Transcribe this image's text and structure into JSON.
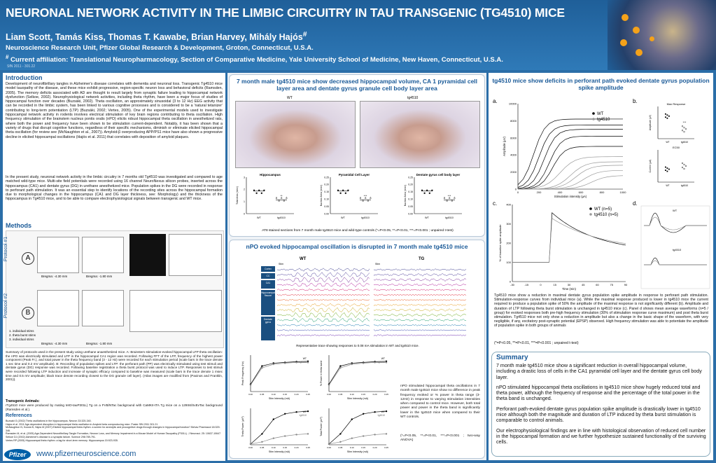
{
  "header": {
    "title": "NEURONAL NETWORK ACTIVITY IN THE LIMBIC CIRCUITRY IN TAU TRANSGENIC (TG4510) MICE",
    "authors": "Liam Scott, Tamás Kiss, Thomas T. Kawabe, Brian Harvey, Mihály Hajós",
    "authors_mark": "#",
    "affiliation": "Neuroscience Research Unit, Pfizer Global Research & Development, Groton, Connecticut, U.S.A.",
    "current_mark": "#",
    "current_affiliation": " Current affiliation: Translational Neuropharmacology, Section of Comparative Medicine, Yale University School of Medicine, New Haven, Connecticut, U.S.A.",
    "sfn": "SfN 2011 - 301.22"
  },
  "intro": {
    "heading": "Introduction",
    "p1": "Development of neurofibrillary tangles in Alzheimer's disease correlates with dementia and neuronal loss. Transgenic Tg4510 mice model tauopathy of the disease, and these mice exhibit progressive, region-specific neuron loss and behavioral deficits (Ramsden, 2005). The memory deficits associated with AD are thought to result largely from synaptic failure leading to hippocampal network dysfunction (Selkoe, 2002). Neurophysiological network activities, including theta rhythm, have been a major focus of studies of hippocampal function over decades (Buzsáki, 2002). Theta oscillation, an approximately sinusoidal (3 to 12 Hz) EEG activity that can be recorded in the limbic system, has been linked to various cognitive processes and is considered to be a 'natural tetanizer' contributing to long-term potentiation (LTP) (Buzsáki, 2002; Vertes, 2005). One of the experimental models used to investigate hippocampal network activity in rodents involves electrical stimulation of key brain regions contributing to theta oscillation. High frequency stimulation of the brainstem nucleus pontis oralis (nPO) elicits robust hippocampal theta oscillation in anesthetized rats, where both the power and frequency have been shown to be stimulation current-dependent. Notably, it has been shown that a variety of drugs that disrupt cognitive functions, regardless of their specific mechanisms, diminish or eliminate elicited hippocampal theta oscillation (for review see (McNaughton et al., 2007)). Amyloid-β overproducing APP/PS1 mice have also shown a progressive decline in elicited hippocampal oscillations (Hajós et al. 2011) that correlates with deposition of amyloid plaques.",
    "p2": "In the present study, neuronal network activity in the limbic circuitry in 7 months old Tg4510 was investigated and compared to age matched wild-type mice. Multi-site field potentials were recorded using 16 channel NeuroNexus silicon probes, inserted across the hippocampus (CA1) and dentate gyrus (DG) in urethane anesthetized mice. Population spikes in the DG were recorded in response to perforant path stimulation. It was an essential step to identify locations of the recording sites across the hippocampal formation due to morphological changes in the hippocampus (CA1 and DG layer thickness, see: Morphology) and the thickness of the hippocampus in Tg4510 mice, and to be able to compare electrophysiological signals between transgenic and WT mice."
  },
  "methods": {
    "heading": "Methods",
    "protocol1": "Protocol #1",
    "protocol2": "Protocol #2",
    "bregma1": "Bregma: -4.30 mm",
    "bregma2": "Bregma: -1.80 mm",
    "bregma3": "Bregma: -4.30 mm",
    "bregma4": "Bregma: -1.80 mm",
    "marker_a": "A",
    "marker_b": "B",
    "legend1": "1. individual stims",
    "legend2": "2. theta burst stims",
    "legend3": "3. individual stims",
    "summary": "Summary of protocols used in the present study using urethane anaesthetized mice. A: Brainstem stimulation-evoked hippocampal LFP theta oscillation: the nPO was electrically stimulated and LFP in the hippocampal CA1 region was recorded. Following FFT of the LFP, frequency of the highest power component (Peak Fr.), and total power in the theta frequency band (3 - 12 Hz) were recorded for each stimulation period (scale bars in the trace denote 1 sec time and 0.2 mV amplitude). B: Recording of population spikes and LTP: the perforant path (PP) was electrically stimulated using test stimuli and dentate gyrus (DG) response was recorded. Following baseline registration a theta burst protocol was used to induce LTP. Responses to test stimuli were recorded following LTP induction and increase of synaptic efficacy compared to baseline was measured (scale bars in the trace denote 1 msec time and 0.5 mV amplitude; black trace denote recording closest to the DG granule cell layer). (Atlas images are modified from (Paxinos and Franklin, 2001)).",
    "transgenic_h": "Transgenic Animals:",
    "transgenic": "rTg4510 mice were produced by mating tetO-tauP301L) Tg on a FVB/NTac background with CaMKII-tTA Tg mice on a 129S6/SvEvTac background (Ramsden et al.)."
  },
  "references": {
    "heading": "References",
    "items": [
      "Buzsaki G (2002) Theta oscillations in the hippocampus. Neuron 33:325-340.",
      "Hajos et al. 2011 Age-dependent disruption in hippocampal theta oscillation in Amyloid beta overproducing mice. Poster SfN 2011 301.21",
      "McNaughton N, Kocsis B, Hajós M (2007) Elicited hippocampal theta rhythm: a screen for anxiolytic and procognitive drugs through changes in hippocampal function? Behav Pharmacol 18:329-346.",
      "Ramsden M, et al. (2005) Age-Dependent Neurofibrillary Tangle Formation, Neuron Loss, and Memory Impairment in a Mouse Model of Human Tauopathy (P301L). J Neurosci. 25: 10637-10647",
      "Selkoe DJ (2002) Alzheimer's disease is a synaptic failure. Science 298:789-791.",
      "Vertes RP (2005) Hippocampal theta rhythm: a tag for short-term memory. Hippocampus 15:923-935."
    ]
  },
  "footer": {
    "logo": "Pfizer",
    "url": "www.pfizerneuroscience.com"
  },
  "morphology": {
    "title": "7 month male tg4510 mice show decreased hippocampal volume, CA 1 pyramidal cell layer area and dentate gyrus granule cell body layer area",
    "wt_label": "WT",
    "tg_label": "tg4510",
    "caption": "AT8 stained sections from 7 month male tg4510 mice and wild-type controls (*=P<0.05, **=P<0.01, ***=P<0.001 ; unpaired t-test)",
    "charts": [
      {
        "title": "Hippocampus",
        "ylabel": "Total Area (mm²)",
        "yticks": [
          "0",
          "1",
          "2",
          "3"
        ],
        "groups": [
          "WT",
          "tg4510"
        ],
        "sig": "**"
      },
      {
        "title": "Pyramidal Cell Layer",
        "ylabel": "Nuclear Area (mm²)",
        "yticks": [
          "0.00",
          "0.05",
          "0.10",
          "0.15",
          "0.20",
          "0.25"
        ],
        "groups": [
          "WT",
          "tg4510"
        ],
        "sig": "***"
      },
      {
        "title": "Dentate gyrus cell body layer",
        "ylabel": "Nuclear Area (mm²)",
        "yticks": [
          "0.00",
          "0.05",
          "0.10",
          "0.15",
          "0.20",
          "0.25"
        ],
        "groups": [
          "WT",
          "tg4510"
        ],
        "sig": "***"
      }
    ]
  },
  "npo": {
    "title": "nPO evoked hippocampal oscillation is disrupted in 7 month male tg4510 mice",
    "wt": "WT",
    "tg": "TG",
    "stim": "Stim",
    "layers": [
      "Cortex",
      "CC",
      "CA1",
      "Hippocampal fissure",
      "Dentate gyrus"
    ],
    "caption": "Representative trace showing responses to 0.08 mA stimulation in WT and tg4510 mice.",
    "charts": [
      {
        "ylabel": "Peak Frequency (Hz)",
        "xlabel": "Stim Intensity (mA)"
      },
      {
        "ylabel": "% Power in theta band",
        "xlabel": "Stim Intensity (mA)"
      },
      {
        "ylabel": "Theta Power (µV²)",
        "xlabel": "Stim Intensity (mA)"
      },
      {
        "ylabel": "Total Power (µV²)",
        "xlabel": "Stim Intensity (mA)"
      }
    ],
    "xticks": [
      "0.00",
      "0.05",
      "0.10",
      "0.15",
      "0.20",
      "0.25"
    ],
    "legend_wt": "WT",
    "legend_tg": "tg4510",
    "text": "nPO stimulated hippocampal theta oscillations in 7 month male tg4510 mice show no difference in peak frequency evoked or % power in theta range (3-12Hz) in response to varying stimulation intensities when compared to control mice. However, both total power and power in the theta band is significantly lower in the tg4510 mice when compared to their WT controls.",
    "sig": "(*=P<0.05, **=P<0.01, ***=P<0.001 ; two-way ANOVA)"
  },
  "perforant": {
    "title": "tg4510 mice show deficits in perforant path evoked dentate gyrus population spike amplitude",
    "panel_a": "a.",
    "panel_b": "b.",
    "panel_c": "c.",
    "panel_d": "d.",
    "legend_wt": "WT",
    "legend_tg": "tg4510",
    "legend_wt_n": "WT (n=5)",
    "legend_tg_n": "tg4510 (n=5)",
    "a_ylabel": "Amplitude (µV)",
    "a_xlabel": "Stimulation intensity (µA)",
    "a_yticks": [
      "0",
      "2000",
      "4000",
      "6000",
      "8000",
      "10000"
    ],
    "a_xticks": [
      "0",
      "200",
      "400",
      "600",
      "800",
      "1000"
    ],
    "b_top": "Max Response",
    "b_bottom": "EC50",
    "b_top_ylabel": "Amplitude (µV)",
    "b_bottom_ylabel": "Current (µA)",
    "b_sig": "***",
    "c_ylabel": "% of baseline spike amplitude",
    "c_xlabel": "Time (min)",
    "c_yticks": [
      "0",
      "100",
      "200",
      "300",
      "400"
    ],
    "c_xticks": [
      "-30",
      "-15",
      "0",
      "15",
      "30",
      "45",
      "60",
      "75",
      "90"
    ],
    "d_wt": "WT",
    "d_tg": "tg4510",
    "text": "Tg4510 mice show a reduction in maximal dentate gyrus population spike amplitude in response to perforant path stimulation. Stimulation-response curves from individual mice (a). While the maximal response produced is lower in tg4510 mice the current required to produce a population spike of 50% the amplitude of the maximal response is not significantly different (b). Amplitude and duration of LTP following theta burst stimulation is unchanged in tg4510 mice (c). Panel d shows mean average waveforms (n=5 / group) for evoked responses both pre-high frequency stimulation (30% of stimulation response curve maximum) and post theta burst stimulation. Tg4510 mice not only show a reduction in amplitude but also a change in the basic shape of the waveform, with very negligible, if any, excitatory post-synaptic potential (EPSP) observed. High frequency stimulation was able to potentiate the amplitude of population spike in both groups of animals",
    "sig": "(*=P<0.05, **=P<0.01, ***=P<0.001 ; unpaired t-test)"
  },
  "summary": {
    "heading": "Summary",
    "p1": "7 month male tg4510 mice show a significant reduction in overall hippocampal volume, including a drastic loss of cells in the CA1 pyramidal cell layer and the dentate gyrus cell body layer.",
    "p2": "nPO stimulated hippocampal theta oscillations in tg4510 mice show hugely reduced total and theta power, although the frequency of response and the percentage of the total power in the theta band is unchanged.",
    "p3": "Perforant path-evoked dentate gyrus population spike amplitude is drastically lower in tg4510 mice although both the magnitude and duration of LTP induced by theta burst stimulation is comparable to control animals.",
    "p4": "Our electrophysiological findings are in line with histological observation of reduced cell number in the hippocampal formation and we further hypothesize sustained functionality of the surviving cells."
  },
  "colors": {
    "header_bg": "#1f5f99",
    "accent": "#1a5a98",
    "page_bg": "#2b6ea8"
  }
}
